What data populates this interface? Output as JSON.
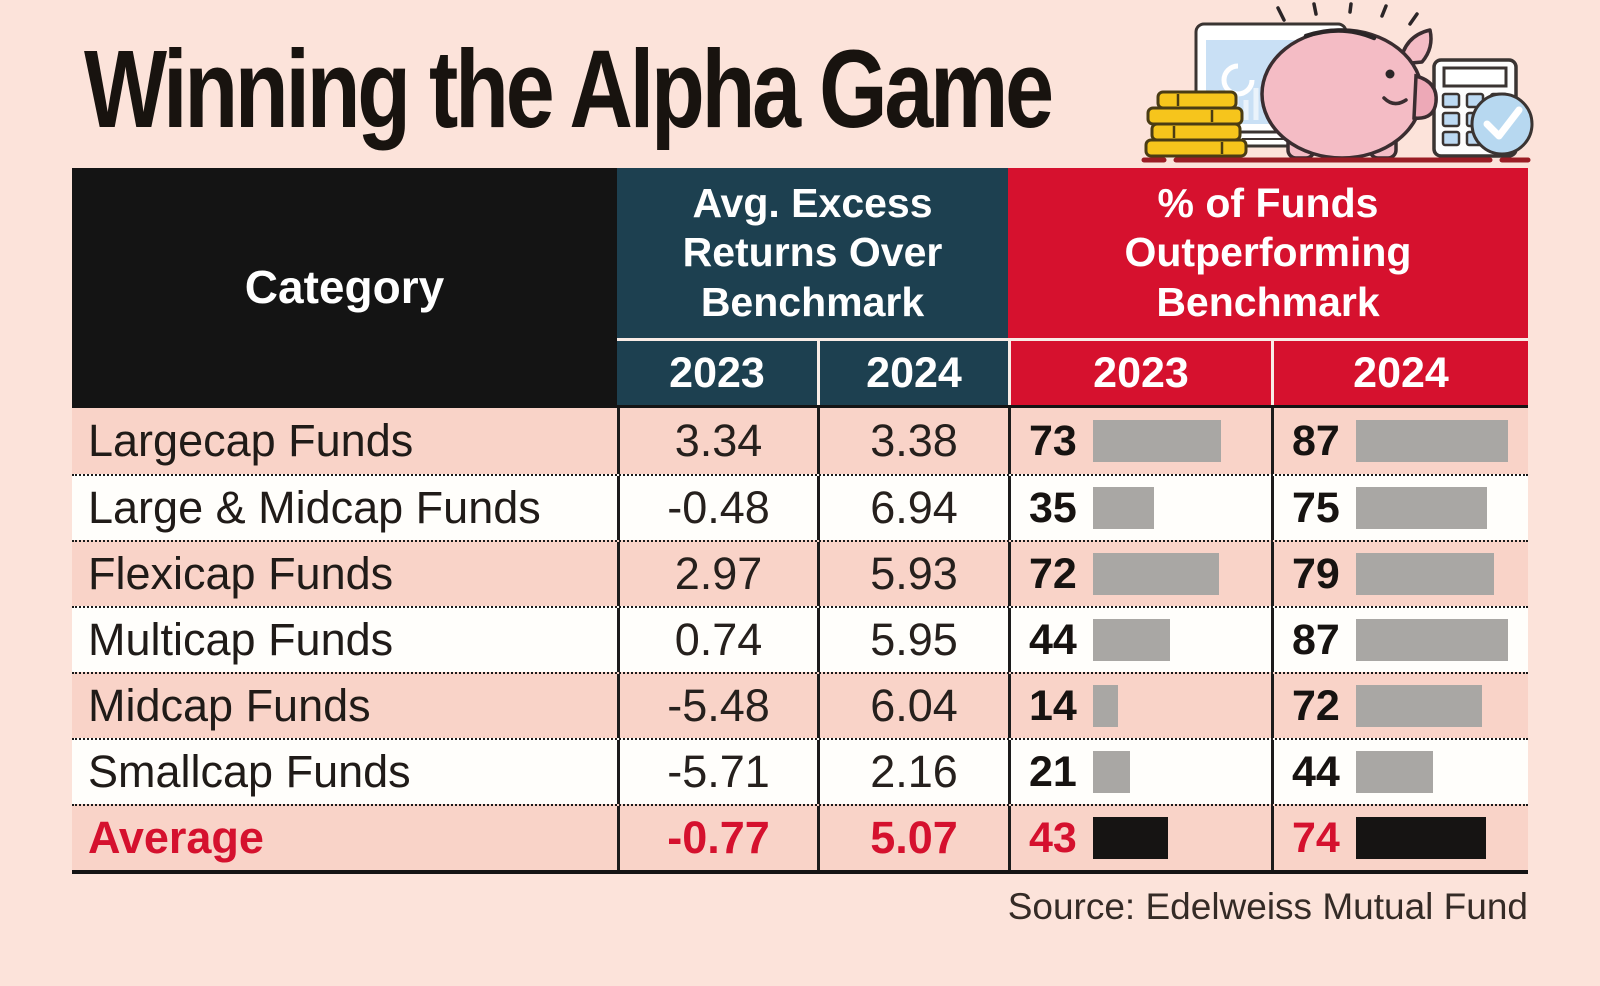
{
  "title": "Winning the Alpha Game",
  "source": "Source: Edelweiss Mutual Fund",
  "colors": {
    "background": "#fce3da",
    "header_black": "#141414",
    "teal_header": "#1d4050",
    "red_header": "#d6112e",
    "row_pink": "#f9d3c8",
    "row_white": "#fffefb",
    "bar_grey": "#a9a7a4",
    "bar_black": "#161413",
    "average_text_red": "#d5112e"
  },
  "table": {
    "category_header": "Category",
    "group_headers": [
      {
        "label": "Avg. Excess Returns Over Benchmark",
        "color": "#1d4050"
      },
      {
        "label": "% of Funds Outperforming Benchmark",
        "color": "#d6112e"
      }
    ],
    "year_headers": [
      "2023",
      "2024",
      "2023",
      "2024"
    ],
    "rows": [
      {
        "category": "Largecap Funds",
        "excess_2023": "3.34",
        "excess_2024": "3.38",
        "pct_2023": 73,
        "pct_2024": 87,
        "highlight": false
      },
      {
        "category": "Large & Midcap Funds",
        "excess_2023": "-0.48",
        "excess_2024": "6.94",
        "pct_2023": 35,
        "pct_2024": 75,
        "highlight": false
      },
      {
        "category": "Flexicap Funds",
        "excess_2023": "2.97",
        "excess_2024": "5.93",
        "pct_2023": 72,
        "pct_2024": 79,
        "highlight": false
      },
      {
        "category": "Multicap Funds",
        "excess_2023": "0.74",
        "excess_2024": "5.95",
        "pct_2023": 44,
        "pct_2024": 87,
        "highlight": false
      },
      {
        "category": "Midcap Funds",
        "excess_2023": "-5.48",
        "excess_2024": "6.04",
        "pct_2023": 14,
        "pct_2024": 72,
        "highlight": false
      },
      {
        "category": "Smallcap Funds",
        "excess_2023": "-5.71",
        "excess_2024": "2.16",
        "pct_2023": 21,
        "pct_2024": 44,
        "highlight": false
      },
      {
        "category": "Average",
        "excess_2023": "-0.77",
        "excess_2024": "5.07",
        "pct_2023": 43,
        "pct_2024": 74,
        "highlight": true
      }
    ]
  },
  "chart_data": {
    "type": "table",
    "title": "Winning the Alpha Game",
    "categories": [
      "Largecap Funds",
      "Large & Midcap Funds",
      "Flexicap Funds",
      "Multicap Funds",
      "Midcap Funds",
      "Smallcap Funds",
      "Average"
    ],
    "series": [
      {
        "name": "Avg. Excess Returns Over Benchmark 2023",
        "values": [
          3.34,
          -0.48,
          2.97,
          0.74,
          -5.48,
          -5.71,
          -0.77
        ]
      },
      {
        "name": "Avg. Excess Returns Over Benchmark 2024",
        "values": [
          3.38,
          6.94,
          5.93,
          5.95,
          6.04,
          2.16,
          5.07
        ]
      },
      {
        "name": "% of Funds Outperforming Benchmark 2023",
        "values": [
          73,
          35,
          72,
          44,
          14,
          21,
          43
        ]
      },
      {
        "name": "% of Funds Outperforming Benchmark 2024",
        "values": [
          87,
          75,
          79,
          87,
          72,
          44,
          74
        ]
      }
    ],
    "notes": "Percentage columns rendered as horizontal bars; Average row emphasized in red with black bars",
    "source": "Source: Edelweiss Mutual Fund"
  }
}
